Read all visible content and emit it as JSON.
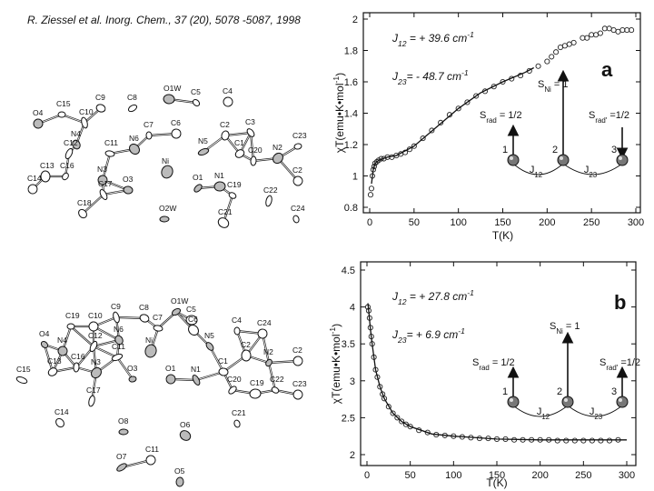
{
  "citation": "R. Ziessel et al. Inorg. Chem., 37 (20), 5078 -5087, 1998",
  "structures": [
    {
      "atoms": [
        "C15",
        "O4",
        "C10",
        "C9",
        "C8",
        "O1W",
        "C5",
        "C4",
        "C12",
        "N4",
        "C11",
        "N6",
        "C7",
        "C6",
        "N5",
        "C2",
        "C3",
        "C13",
        "C16",
        "N3",
        "Ni",
        "C1",
        "C20",
        "N2",
        "C23",
        "C14",
        "C17",
        "O3",
        "O1",
        "N1",
        "C19",
        "C2",
        "C22",
        "C18",
        "O2W",
        "C21",
        "C24"
      ]
    },
    {
      "atoms": [
        "C19",
        "C10",
        "C9",
        "C8",
        "O1W",
        "C5",
        "O4",
        "N4",
        "C12",
        "N6",
        "C7",
        "C6",
        "C4",
        "C24",
        "C11",
        "Ni",
        "N5",
        "C2",
        "N2",
        "C2",
        "C15",
        "C13",
        "C16",
        "N3",
        "O3",
        "O1",
        "N1",
        "C1",
        "C20",
        "C19",
        "C22",
        "C23",
        "C17",
        "C14",
        "O8",
        "O6",
        "C21",
        "C11",
        "O7",
        "O5"
      ]
    }
  ],
  "chart_data": [
    {
      "type": "scatter",
      "panel": "a",
      "x_label": "T(K)",
      "y_label": {
        "text": "χT(emu•K•mol",
        "sup": "-1",
        "tail": ")"
      },
      "xlim": [
        0,
        300
      ],
      "xticks": [
        0,
        50,
        100,
        150,
        200,
        250,
        300
      ],
      "ylim": [
        0.8,
        2
      ],
      "yticks": [
        0.8,
        1,
        1.2,
        1.4,
        1.6,
        1.8,
        2
      ],
      "annotations": [
        {
          "text": "J",
          "sub": "12",
          "rest": " = + 39.6 cm",
          "sup": "-1"
        },
        {
          "text": "J",
          "sub": "23",
          "rest": "= - 48.7 cm",
          "sup": "-1"
        }
      ],
      "inset": {
        "spins": [
          {
            "text": "S",
            "sub": "rad",
            "rest": " = 1/2"
          },
          {
            "text": "S",
            "sub": "Ni",
            "rest": " = 1"
          },
          {
            "text": "S",
            "sub": "rad'",
            "rest": " =1/2"
          }
        ],
        "sites": [
          "1",
          "2",
          "3"
        ],
        "couplings": [
          {
            "text": "J",
            "sub": "12"
          },
          {
            "text": "J",
            "sub": "23"
          }
        ],
        "third_spin": "down"
      },
      "series": [
        {
          "style": "markers",
          "color": "#222222",
          "x": [
            1,
            2,
            3,
            4,
            5,
            6,
            8,
            10,
            13,
            16,
            20,
            25,
            30,
            35,
            40,
            45,
            50,
            60,
            70,
            80,
            90,
            100,
            110,
            120,
            130,
            140,
            150,
            160,
            170,
            180,
            190,
            200,
            205,
            210,
            215,
            220,
            225,
            230,
            240,
            245,
            250,
            255,
            260,
            265,
            270,
            275,
            280,
            285,
            290,
            295
          ],
          "values": [
            0.88,
            0.92,
            1.0,
            1.04,
            1.06,
            1.08,
            1.09,
            1.1,
            1.11,
            1.11,
            1.12,
            1.12,
            1.13,
            1.14,
            1.15,
            1.17,
            1.19,
            1.24,
            1.29,
            1.34,
            1.39,
            1.43,
            1.47,
            1.51,
            1.54,
            1.57,
            1.6,
            1.62,
            1.64,
            1.67,
            1.7,
            1.73,
            1.76,
            1.79,
            1.82,
            1.83,
            1.84,
            1.85,
            1.88,
            1.88,
            1.9,
            1.9,
            1.91,
            1.94,
            1.94,
            1.93,
            1.92,
            1.93,
            1.93,
            1.93
          ]
        },
        {
          "style": "line",
          "color": "#111111",
          "x": [
            2,
            4,
            6,
            10,
            20,
            30,
            50,
            75,
            100,
            125,
            150,
            175,
            185
          ],
          "values": [
            0.95,
            1.04,
            1.08,
            1.1,
            1.12,
            1.13,
            1.19,
            1.31,
            1.43,
            1.53,
            1.6,
            1.66,
            1.69
          ]
        }
      ]
    },
    {
      "type": "scatter",
      "panel": "b",
      "x_label": "T(K)",
      "y_label": {
        "text": "χT(emu•K•mol",
        "sup": "-1",
        "tail": ")"
      },
      "xlim": [
        0,
        300
      ],
      "xticks": [
        0,
        50,
        100,
        150,
        200,
        250,
        300
      ],
      "ylim": [
        2,
        4.5
      ],
      "yticks": [
        2,
        2.5,
        3,
        3.5,
        4,
        4.5
      ],
      "annotations": [
        {
          "text": "J",
          "sub": "12",
          "rest": " = + 27.8 cm",
          "sup": "-1"
        },
        {
          "text": "J",
          "sub": "23",
          "rest": "= + 6.9 cm",
          "sup": "-1"
        }
      ],
      "inset": {
        "spins": [
          {
            "text": "S",
            "sub": "rad",
            "rest": " = 1/2"
          },
          {
            "text": "S",
            "sub": "Ni",
            "rest": " = 1"
          },
          {
            "text": "S",
            "sub": "rad'",
            "rest": " =1/2"
          }
        ],
        "sites": [
          "1",
          "2",
          "3"
        ],
        "couplings": [
          {
            "text": "J",
            "sub": "12"
          },
          {
            "text": "J",
            "sub": "23"
          }
        ],
        "third_spin": "up"
      },
      "series": [
        {
          "style": "markers",
          "color": "#222222",
          "x": [
            1,
            2,
            3,
            4,
            5,
            6,
            8,
            10,
            12,
            15,
            18,
            20,
            25,
            30,
            35,
            40,
            45,
            50,
            60,
            70,
            80,
            90,
            100,
            110,
            120,
            130,
            140,
            150,
            160,
            170,
            180,
            190,
            200,
            210,
            220,
            230,
            240,
            250,
            260,
            270,
            280,
            290
          ],
          "values": [
            4.0,
            3.95,
            3.85,
            3.72,
            3.6,
            3.5,
            3.32,
            3.15,
            3.05,
            2.92,
            2.82,
            2.76,
            2.65,
            2.56,
            2.5,
            2.45,
            2.41,
            2.38,
            2.33,
            2.3,
            2.27,
            2.26,
            2.25,
            2.24,
            2.23,
            2.22,
            2.22,
            2.21,
            2.21,
            2.2,
            2.2,
            2.2,
            2.2,
            2.2,
            2.19,
            2.19,
            2.19,
            2.19,
            2.19,
            2.19,
            2.19,
            2.2
          ]
        },
        {
          "style": "line",
          "color": "#111111",
          "x": [
            1,
            2,
            4,
            6,
            10,
            15,
            20,
            30,
            40,
            50,
            75,
            100,
            150,
            200,
            250,
            300
          ],
          "values": [
            4.05,
            3.95,
            3.7,
            3.5,
            3.15,
            2.92,
            2.76,
            2.56,
            2.45,
            2.38,
            2.28,
            2.25,
            2.21,
            2.2,
            2.2,
            2.2
          ]
        }
      ]
    }
  ]
}
